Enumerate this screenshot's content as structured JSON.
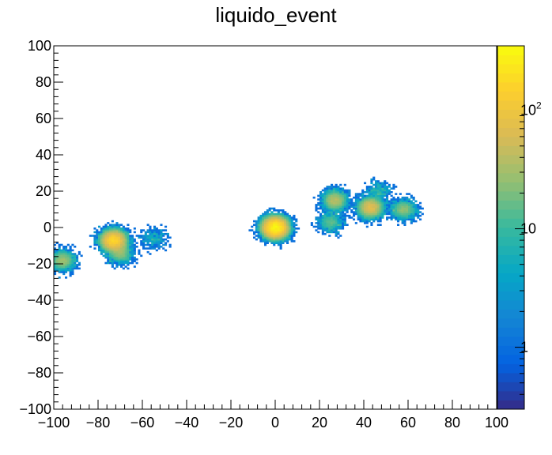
{
  "chart_data": {
    "type": "heatmap",
    "title": "liquido_event",
    "xlabel": "",
    "ylabel": "",
    "xlim": [
      -100,
      100
    ],
    "ylim": [
      -100,
      100
    ],
    "x_ticks": [
      "−100",
      "−80",
      "−60",
      "−40",
      "−20",
      "0",
      "20",
      "40",
      "60",
      "80",
      "100"
    ],
    "y_ticks": [
      "−100",
      "−80",
      "−60",
      "−40",
      "−20",
      "0",
      "20",
      "40",
      "60",
      "80",
      "100"
    ],
    "z_scale": "log",
    "zlim": [
      0.3,
      350
    ],
    "z_tick_labels": [
      {
        "value": 1,
        "label": "1"
      },
      {
        "value": 10,
        "label": "10"
      },
      {
        "value": 100,
        "label": "10",
        "exponent": "2"
      }
    ],
    "colormap": [
      "#352a87",
      "#0363e1",
      "#1485d4",
      "#06a7c6",
      "#38b99e",
      "#92bf73",
      "#d9ba56",
      "#fcce2e",
      "#f9fb0e"
    ],
    "clusters": [
      {
        "x": -73,
        "y": -7,
        "peak": 160
      },
      {
        "x": -70,
        "y": -14,
        "peak": 25
      },
      {
        "x": -96,
        "y": -18,
        "peak": 30
      },
      {
        "x": -55,
        "y": -6,
        "peak": 6
      },
      {
        "x": 0,
        "y": 0,
        "peak": 300
      },
      {
        "x": 27,
        "y": 15,
        "peak": 40
      },
      {
        "x": 25,
        "y": 3,
        "peak": 15
      },
      {
        "x": 43,
        "y": 11,
        "peak": 70
      },
      {
        "x": 58,
        "y": 10,
        "peak": 25
      },
      {
        "x": 47,
        "y": 20,
        "peak": 8
      }
    ]
  }
}
